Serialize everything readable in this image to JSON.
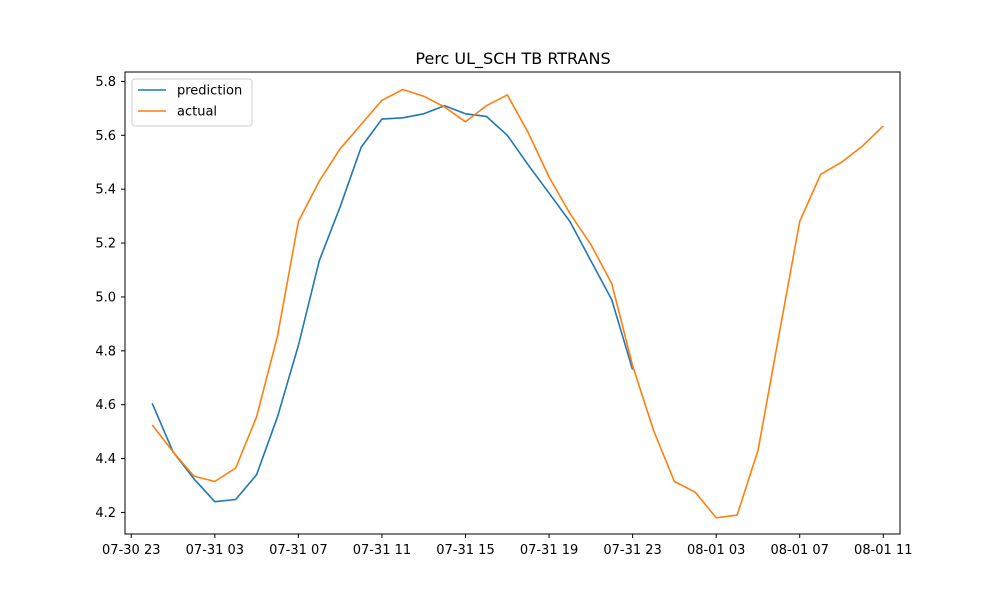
{
  "chart_data": {
    "type": "line",
    "title": "Perc UL_SCH TB RTRANS",
    "xlabel": "",
    "ylabel": "",
    "x_start": "2025-07-31T00:00:00",
    "xlim": [
      -1.3,
      35.8
    ],
    "ylim": [
      4.12,
      5.835
    ],
    "grid": false,
    "legend_position": "top-left",
    "x_ticks": [
      {
        "value": -1,
        "label": "07-30 23"
      },
      {
        "value": 3,
        "label": "07-31 03"
      },
      {
        "value": 7,
        "label": "07-31 07"
      },
      {
        "value": 11,
        "label": "07-31 11"
      },
      {
        "value": 15,
        "label": "07-31 15"
      },
      {
        "value": 19,
        "label": "07-31 19"
      },
      {
        "value": 23,
        "label": "07-31 23"
      },
      {
        "value": 27,
        "label": "08-01 03"
      },
      {
        "value": 31,
        "label": "08-01 07"
      },
      {
        "value": 35,
        "label": "08-01 11"
      }
    ],
    "y_ticks": [
      {
        "value": 4.2,
        "label": "4.2"
      },
      {
        "value": 4.4,
        "label": "4.4"
      },
      {
        "value": 4.6,
        "label": "4.6"
      },
      {
        "value": 4.8,
        "label": "4.8"
      },
      {
        "value": 5.0,
        "label": "5.0"
      },
      {
        "value": 5.2,
        "label": "5.2"
      },
      {
        "value": 5.4,
        "label": "5.4"
      },
      {
        "value": 5.6,
        "label": "5.6"
      },
      {
        "value": 5.8,
        "label": "5.8"
      }
    ],
    "series": [
      {
        "name": "prediction",
        "color": "#1f77b4",
        "x": [
          0,
          1,
          2,
          3,
          4,
          5,
          6,
          7,
          8,
          9,
          10,
          11,
          12,
          13,
          14,
          15,
          16,
          17,
          18,
          19,
          20,
          21,
          22,
          23
        ],
        "y": [
          4.605,
          4.425,
          4.325,
          4.24,
          4.248,
          4.34,
          4.555,
          4.82,
          5.135,
          5.335,
          5.555,
          5.66,
          5.665,
          5.68,
          5.71,
          5.68,
          5.67,
          5.6,
          5.49,
          5.385,
          5.28,
          5.135,
          4.99,
          4.73
        ]
      },
      {
        "name": "actual",
        "color": "#ff7f0e",
        "x": [
          0,
          1,
          2,
          3,
          4,
          5,
          6,
          7,
          8,
          9,
          10,
          11,
          12,
          13,
          14,
          15,
          16,
          17,
          18,
          19,
          20,
          21,
          22,
          23,
          24,
          25,
          26,
          27,
          28,
          29,
          30,
          31,
          32,
          33,
          34,
          35
        ],
        "y": [
          4.525,
          4.425,
          4.335,
          4.315,
          4.365,
          4.555,
          4.855,
          5.28,
          5.43,
          5.55,
          5.64,
          5.73,
          5.77,
          5.745,
          5.705,
          5.65,
          5.71,
          5.75,
          5.61,
          5.445,
          5.31,
          5.195,
          5.05,
          4.745,
          4.505,
          4.315,
          4.275,
          4.18,
          4.19,
          4.43,
          4.855,
          5.28,
          5.455,
          5.5,
          5.56,
          5.635
        ]
      }
    ]
  }
}
